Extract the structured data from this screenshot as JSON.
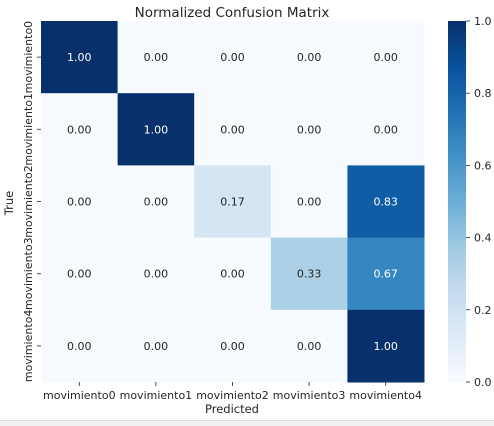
{
  "chart_data": {
    "type": "heatmap",
    "title": "Normalized Confusion Matrix",
    "xlabel": "Predicted",
    "ylabel": "True",
    "x_categories": [
      "movimiento0",
      "movimiento1",
      "movimiento2",
      "movimiento3",
      "movimiento4"
    ],
    "y_categories": [
      "movimiento0",
      "movimiento1",
      "movimiento2",
      "movimiento3",
      "movimiento4"
    ],
    "values": [
      [
        1.0,
        0.0,
        0.0,
        0.0,
        0.0
      ],
      [
        0.0,
        1.0,
        0.0,
        0.0,
        0.0
      ],
      [
        0.0,
        0.0,
        0.17,
        0.0,
        0.83
      ],
      [
        0.0,
        0.0,
        0.0,
        0.33,
        0.67
      ],
      [
        0.0,
        0.0,
        0.0,
        0.0,
        1.0
      ]
    ],
    "cell_labels": [
      [
        "1.00",
        "0.00",
        "0.00",
        "0.00",
        "0.00"
      ],
      [
        "0.00",
        "1.00",
        "0.00",
        "0.00",
        "0.00"
      ],
      [
        "0.00",
        "0.00",
        "0.17",
        "0.00",
        "0.83"
      ],
      [
        "0.00",
        "0.00",
        "0.00",
        "0.33",
        "0.67"
      ],
      [
        "0.00",
        "0.00",
        "0.00",
        "0.00",
        "1.00"
      ]
    ],
    "colorbar": {
      "range": [
        0,
        1
      ],
      "ticks": [
        "0.0",
        "0.2",
        "0.4",
        "0.6",
        "0.8",
        "1.0"
      ],
      "colormap": "Blues"
    },
    "grid": false,
    "legend": "colorbar-right"
  }
}
